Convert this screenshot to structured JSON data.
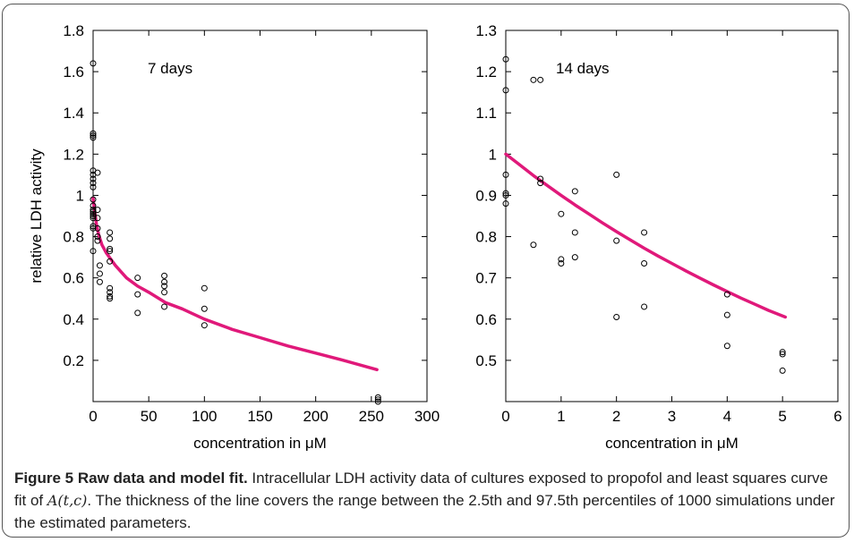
{
  "chart_data": [
    {
      "type": "scatter",
      "annotation": "7 days",
      "xlabel": "concentration in μM",
      "ylabel": "relative LDH activity",
      "xlim": [
        0,
        300
      ],
      "ylim": [
        0,
        1.8
      ],
      "xticks": [
        0,
        50,
        100,
        150,
        200,
        250,
        300
      ],
      "yticks": [
        0.2,
        0.4,
        0.6,
        0.8,
        1,
        1.2,
        1.4,
        1.6,
        1.8
      ],
      "grid": false,
      "points": [
        [
          0,
          1.64
        ],
        [
          0,
          1.3
        ],
        [
          0,
          1.29
        ],
        [
          0,
          1.28
        ],
        [
          0,
          1.12
        ],
        [
          0,
          1.1
        ],
        [
          0,
          1.08
        ],
        [
          0,
          1.06
        ],
        [
          0,
          1.04
        ],
        [
          0,
          0.98
        ],
        [
          0,
          0.95
        ],
        [
          0,
          0.93
        ],
        [
          0,
          0.92
        ],
        [
          0,
          0.91
        ],
        [
          0,
          0.9
        ],
        [
          0,
          0.89
        ],
        [
          0,
          0.85
        ],
        [
          0,
          0.84
        ],
        [
          0,
          0.73
        ],
        [
          4,
          1.11
        ],
        [
          4,
          0.93
        ],
        [
          4,
          0.89
        ],
        [
          4,
          0.84
        ],
        [
          4,
          0.8
        ],
        [
          4,
          0.78
        ],
        [
          6,
          0.66
        ],
        [
          6,
          0.62
        ],
        [
          6,
          0.58
        ],
        [
          15,
          0.82
        ],
        [
          15,
          0.79
        ],
        [
          15,
          0.74
        ],
        [
          15,
          0.73
        ],
        [
          15,
          0.68
        ],
        [
          15,
          0.55
        ],
        [
          15,
          0.53
        ],
        [
          15,
          0.51
        ],
        [
          15,
          0.5
        ],
        [
          40,
          0.6
        ],
        [
          40,
          0.52
        ],
        [
          40,
          0.43
        ],
        [
          64,
          0.61
        ],
        [
          64,
          0.58
        ],
        [
          64,
          0.56
        ],
        [
          64,
          0.53
        ],
        [
          64,
          0.46
        ],
        [
          100,
          0.55
        ],
        [
          100,
          0.45
        ],
        [
          100,
          0.37
        ],
        [
          256,
          0.02
        ],
        [
          256,
          0.01
        ],
        [
          256,
          0.0
        ]
      ],
      "fit_curve": [
        [
          0,
          0.985
        ],
        [
          1,
          0.94
        ],
        [
          2,
          0.9
        ],
        [
          3,
          0.86
        ],
        [
          5,
          0.81
        ],
        [
          8,
          0.76
        ],
        [
          12,
          0.72
        ],
        [
          20,
          0.66
        ],
        [
          30,
          0.6
        ],
        [
          40,
          0.56
        ],
        [
          50,
          0.53
        ],
        [
          65,
          0.48
        ],
        [
          80,
          0.45
        ],
        [
          100,
          0.4
        ],
        [
          125,
          0.35
        ],
        [
          150,
          0.31
        ],
        [
          175,
          0.27
        ],
        [
          200,
          0.235
        ],
        [
          225,
          0.2
        ],
        [
          255,
          0.155
        ]
      ],
      "fit_color": "#e0197a"
    },
    {
      "type": "scatter",
      "annotation": "14 days",
      "xlabel": "concentration in μM",
      "ylabel": "",
      "xlim": [
        0,
        6
      ],
      "ylim": [
        0.4,
        1.3
      ],
      "xticks": [
        0,
        1,
        2,
        3,
        4,
        5,
        6
      ],
      "yticks": [
        0.5,
        0.6,
        0.7,
        0.8,
        0.9,
        1,
        1.1,
        1.2,
        1.3
      ],
      "grid": false,
      "points": [
        [
          0,
          1.23
        ],
        [
          0,
          1.155
        ],
        [
          0,
          0.95
        ],
        [
          0,
          0.905
        ],
        [
          0,
          0.9
        ],
        [
          0,
          0.88
        ],
        [
          0.5,
          1.18
        ],
        [
          0.5,
          0.78
        ],
        [
          0.625,
          1.18
        ],
        [
          0.625,
          0.94
        ],
        [
          0.625,
          0.93
        ],
        [
          1,
          0.855
        ],
        [
          1,
          0.745
        ],
        [
          1,
          0.735
        ],
        [
          1.25,
          0.91
        ],
        [
          1.25,
          0.81
        ],
        [
          1.25,
          0.75
        ],
        [
          2,
          0.95
        ],
        [
          2,
          0.79
        ],
        [
          2,
          0.605
        ],
        [
          2.5,
          0.81
        ],
        [
          2.5,
          0.735
        ],
        [
          2.5,
          0.63
        ],
        [
          4,
          0.66
        ],
        [
          4,
          0.61
        ],
        [
          4,
          0.535
        ],
        [
          5,
          0.52
        ],
        [
          5,
          0.515
        ],
        [
          5,
          0.475
        ]
      ],
      "fit_curve": [
        [
          0,
          1.0
        ],
        [
          0.25,
          0.974
        ],
        [
          0.5,
          0.948
        ],
        [
          0.75,
          0.924
        ],
        [
          1,
          0.9
        ],
        [
          1.25,
          0.877
        ],
        [
          1.5,
          0.855
        ],
        [
          1.75,
          0.833
        ],
        [
          2,
          0.812
        ],
        [
          2.25,
          0.792
        ],
        [
          2.5,
          0.772
        ],
        [
          2.75,
          0.753
        ],
        [
          3,
          0.735
        ],
        [
          3.25,
          0.717
        ],
        [
          3.5,
          0.7
        ],
        [
          3.75,
          0.683
        ],
        [
          4,
          0.667
        ],
        [
          4.25,
          0.651
        ],
        [
          4.5,
          0.636
        ],
        [
          4.75,
          0.621
        ],
        [
          5.05,
          0.605
        ]
      ],
      "fit_color": "#e0197a"
    }
  ],
  "caption": {
    "title": "Figure 5 Raw data and model fit.",
    "text_before_formula": " Intracellular LDH activity data of cultures exposed to propofol and least squares curve fit of ",
    "formula": "A(t,c)",
    "text_after_formula": ". The thickness of the line covers the range between the 2.5th and 97.5th percentiles of 1000 simulations under the estimated parameters."
  }
}
